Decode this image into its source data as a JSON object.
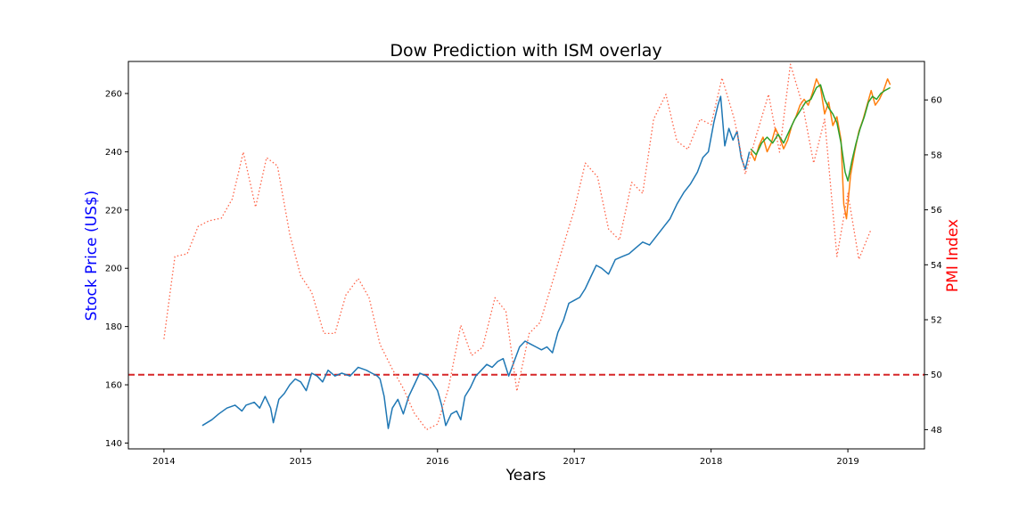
{
  "chart_data": {
    "type": "line",
    "title": "Dow Prediction with ISM overlay",
    "xlabel": "Years",
    "ylabel_left": "Stock Price (US$)",
    "ylabel_right": "PMI Index",
    "xlim": [
      2013.74,
      2019.56
    ],
    "ylim_left": [
      138,
      271
    ],
    "ylim_right": [
      47.3,
      61.4
    ],
    "x_ticks": [
      "2014",
      "2015",
      "2016",
      "2017",
      "2018",
      "2019"
    ],
    "y_ticks_left": [
      "140",
      "160",
      "180",
      "200",
      "220",
      "240",
      "260"
    ],
    "y_ticks_right": [
      "48",
      "50",
      "52",
      "54",
      "56",
      "58",
      "60"
    ],
    "grid": false,
    "legend": "none",
    "colors": {
      "stock": "#1f77b4",
      "prediction_orange": "#ff7f0e",
      "prediction_green": "#2ca02c",
      "pmi": "#ff6347",
      "threshold": "#d62728",
      "left_label": "#0000ff",
      "right_label": "#ff0000"
    },
    "threshold": {
      "axis": "right",
      "value": 50
    },
    "series": [
      {
        "id": "stock",
        "axis": "left",
        "style": "solid",
        "points": [
          [
            2014.28,
            146
          ],
          [
            2014.35,
            148
          ],
          [
            2014.4,
            150
          ],
          [
            2014.46,
            152
          ],
          [
            2014.52,
            153
          ],
          [
            2014.57,
            151
          ],
          [
            2014.6,
            153
          ],
          [
            2014.66,
            154
          ],
          [
            2014.7,
            152
          ],
          [
            2014.74,
            156
          ],
          [
            2014.78,
            152
          ],
          [
            2014.8,
            147
          ],
          [
            2014.84,
            155
          ],
          [
            2014.88,
            157
          ],
          [
            2014.92,
            160
          ],
          [
            2014.96,
            162
          ],
          [
            2015.0,
            161
          ],
          [
            2015.04,
            158
          ],
          [
            2015.08,
            164
          ],
          [
            2015.12,
            163
          ],
          [
            2015.16,
            161
          ],
          [
            2015.2,
            165
          ],
          [
            2015.25,
            163
          ],
          [
            2015.3,
            164
          ],
          [
            2015.36,
            163
          ],
          [
            2015.42,
            166
          ],
          [
            2015.48,
            165
          ],
          [
            2015.52,
            164
          ],
          [
            2015.56,
            163
          ],
          [
            2015.58,
            162
          ],
          [
            2015.61,
            156
          ],
          [
            2015.64,
            145
          ],
          [
            2015.67,
            152
          ],
          [
            2015.71,
            155
          ],
          [
            2015.75,
            150
          ],
          [
            2015.79,
            156
          ],
          [
            2015.83,
            160
          ],
          [
            2015.87,
            164
          ],
          [
            2015.92,
            163
          ],
          [
            2015.96,
            161
          ],
          [
            2016.0,
            158
          ],
          [
            2016.03,
            153
          ],
          [
            2016.06,
            146
          ],
          [
            2016.1,
            150
          ],
          [
            2016.14,
            151
          ],
          [
            2016.17,
            148
          ],
          [
            2016.2,
            156
          ],
          [
            2016.24,
            159
          ],
          [
            2016.28,
            163
          ],
          [
            2016.32,
            165
          ],
          [
            2016.36,
            167
          ],
          [
            2016.4,
            166
          ],
          [
            2016.44,
            168
          ],
          [
            2016.48,
            169
          ],
          [
            2016.52,
            163
          ],
          [
            2016.56,
            168
          ],
          [
            2016.6,
            173
          ],
          [
            2016.64,
            175
          ],
          [
            2016.68,
            174
          ],
          [
            2016.72,
            173
          ],
          [
            2016.76,
            172
          ],
          [
            2016.8,
            173
          ],
          [
            2016.84,
            171
          ],
          [
            2016.88,
            178
          ],
          [
            2016.92,
            182
          ],
          [
            2016.96,
            188
          ],
          [
            2017.0,
            189
          ],
          [
            2017.04,
            190
          ],
          [
            2017.08,
            193
          ],
          [
            2017.12,
            197
          ],
          [
            2017.16,
            201
          ],
          [
            2017.2,
            200
          ],
          [
            2017.25,
            198
          ],
          [
            2017.3,
            203
          ],
          [
            2017.35,
            204
          ],
          [
            2017.4,
            205
          ],
          [
            2017.45,
            207
          ],
          [
            2017.5,
            209
          ],
          [
            2017.55,
            208
          ],
          [
            2017.6,
            211
          ],
          [
            2017.65,
            214
          ],
          [
            2017.7,
            217
          ],
          [
            2017.75,
            222
          ],
          [
            2017.8,
            226
          ],
          [
            2017.85,
            229
          ],
          [
            2017.9,
            233
          ],
          [
            2017.94,
            238
          ],
          [
            2017.98,
            240
          ],
          [
            2018.02,
            250
          ],
          [
            2018.05,
            256
          ],
          [
            2018.07,
            259
          ],
          [
            2018.1,
            242
          ],
          [
            2018.13,
            248
          ],
          [
            2018.16,
            244
          ],
          [
            2018.19,
            247
          ],
          [
            2018.22,
            238
          ],
          [
            2018.25,
            234
          ],
          [
            2018.28,
            240
          ]
        ]
      },
      {
        "id": "prediction_orange",
        "axis": "left",
        "style": "solid",
        "points": [
          [
            2018.29,
            240
          ],
          [
            2018.32,
            237
          ],
          [
            2018.35,
            242
          ],
          [
            2018.38,
            245
          ],
          [
            2018.41,
            240
          ],
          [
            2018.44,
            243
          ],
          [
            2018.47,
            248
          ],
          [
            2018.5,
            245
          ],
          [
            2018.53,
            241
          ],
          [
            2018.56,
            244
          ],
          [
            2018.59,
            249
          ],
          [
            2018.62,
            252
          ],
          [
            2018.65,
            256
          ],
          [
            2018.68,
            258
          ],
          [
            2018.71,
            256
          ],
          [
            2018.74,
            260
          ],
          [
            2018.77,
            265
          ],
          [
            2018.8,
            262
          ],
          [
            2018.83,
            253
          ],
          [
            2018.86,
            257
          ],
          [
            2018.89,
            249
          ],
          [
            2018.92,
            252
          ],
          [
            2018.95,
            244
          ],
          [
            2018.97,
            222
          ],
          [
            2018.99,
            217
          ],
          [
            2019.02,
            232
          ],
          [
            2019.05,
            240
          ],
          [
            2019.08,
            247
          ],
          [
            2019.11,
            251
          ],
          [
            2019.14,
            256
          ],
          [
            2019.17,
            261
          ],
          [
            2019.2,
            256
          ],
          [
            2019.23,
            258
          ],
          [
            2019.26,
            261
          ],
          [
            2019.29,
            265
          ],
          [
            2019.31,
            263
          ]
        ]
      },
      {
        "id": "prediction_green",
        "axis": "left",
        "style": "solid",
        "points": [
          [
            2018.29,
            241
          ],
          [
            2018.33,
            239
          ],
          [
            2018.37,
            243
          ],
          [
            2018.41,
            245
          ],
          [
            2018.45,
            243
          ],
          [
            2018.49,
            246
          ],
          [
            2018.53,
            243
          ],
          [
            2018.57,
            247
          ],
          [
            2018.61,
            251
          ],
          [
            2018.65,
            254
          ],
          [
            2018.69,
            257
          ],
          [
            2018.73,
            258
          ],
          [
            2018.77,
            262
          ],
          [
            2018.8,
            263
          ],
          [
            2018.83,
            258
          ],
          [
            2018.86,
            255
          ],
          [
            2018.89,
            253
          ],
          [
            2018.92,
            250
          ],
          [
            2018.95,
            243
          ],
          [
            2018.98,
            233
          ],
          [
            2019.0,
            230
          ],
          [
            2019.03,
            237
          ],
          [
            2019.06,
            243
          ],
          [
            2019.09,
            248
          ],
          [
            2019.12,
            252
          ],
          [
            2019.15,
            257
          ],
          [
            2019.18,
            259
          ],
          [
            2019.21,
            258
          ],
          [
            2019.24,
            260
          ],
          [
            2019.27,
            261
          ],
          [
            2019.31,
            262
          ]
        ]
      },
      {
        "id": "pmi",
        "axis": "right",
        "style": "dotted",
        "points": [
          [
            2014.0,
            51.3
          ],
          [
            2014.08,
            54.3
          ],
          [
            2014.17,
            54.4
          ],
          [
            2014.25,
            55.4
          ],
          [
            2014.33,
            55.6
          ],
          [
            2014.42,
            55.7
          ],
          [
            2014.5,
            56.4
          ],
          [
            2014.58,
            58.1
          ],
          [
            2014.67,
            56.1
          ],
          [
            2014.75,
            57.9
          ],
          [
            2014.83,
            57.6
          ],
          [
            2014.92,
            55.1
          ],
          [
            2015.0,
            53.6
          ],
          [
            2015.08,
            53.0
          ],
          [
            2015.17,
            51.5
          ],
          [
            2015.25,
            51.5
          ],
          [
            2015.33,
            52.9
          ],
          [
            2015.42,
            53.5
          ],
          [
            2015.5,
            52.8
          ],
          [
            2015.58,
            51.1
          ],
          [
            2015.67,
            50.2
          ],
          [
            2015.75,
            49.5
          ],
          [
            2015.83,
            48.6
          ],
          [
            2015.92,
            48.0
          ],
          [
            2016.0,
            48.2
          ],
          [
            2016.08,
            49.5
          ],
          [
            2016.17,
            51.8
          ],
          [
            2016.25,
            50.7
          ],
          [
            2016.33,
            51.0
          ],
          [
            2016.42,
            52.8
          ],
          [
            2016.5,
            52.3
          ],
          [
            2016.58,
            49.4
          ],
          [
            2016.67,
            51.5
          ],
          [
            2016.75,
            51.9
          ],
          [
            2016.83,
            53.2
          ],
          [
            2016.92,
            54.7
          ],
          [
            2017.0,
            56.0
          ],
          [
            2017.08,
            57.7
          ],
          [
            2017.17,
            57.2
          ],
          [
            2017.25,
            55.3
          ],
          [
            2017.33,
            54.9
          ],
          [
            2017.42,
            57.0
          ],
          [
            2017.5,
            56.6
          ],
          [
            2017.58,
            59.3
          ],
          [
            2017.67,
            60.2
          ],
          [
            2017.75,
            58.5
          ],
          [
            2017.83,
            58.2
          ],
          [
            2017.92,
            59.3
          ],
          [
            2018.0,
            59.1
          ],
          [
            2018.08,
            60.8
          ],
          [
            2018.17,
            59.3
          ],
          [
            2018.25,
            57.3
          ],
          [
            2018.33,
            58.7
          ],
          [
            2018.42,
            60.2
          ],
          [
            2018.5,
            58.1
          ],
          [
            2018.58,
            61.3
          ],
          [
            2018.67,
            59.8
          ],
          [
            2018.75,
            57.7
          ],
          [
            2018.83,
            59.3
          ],
          [
            2018.92,
            54.3
          ],
          [
            2019.0,
            56.6
          ],
          [
            2019.08,
            54.2
          ],
          [
            2019.17,
            55.3
          ]
        ]
      }
    ]
  }
}
